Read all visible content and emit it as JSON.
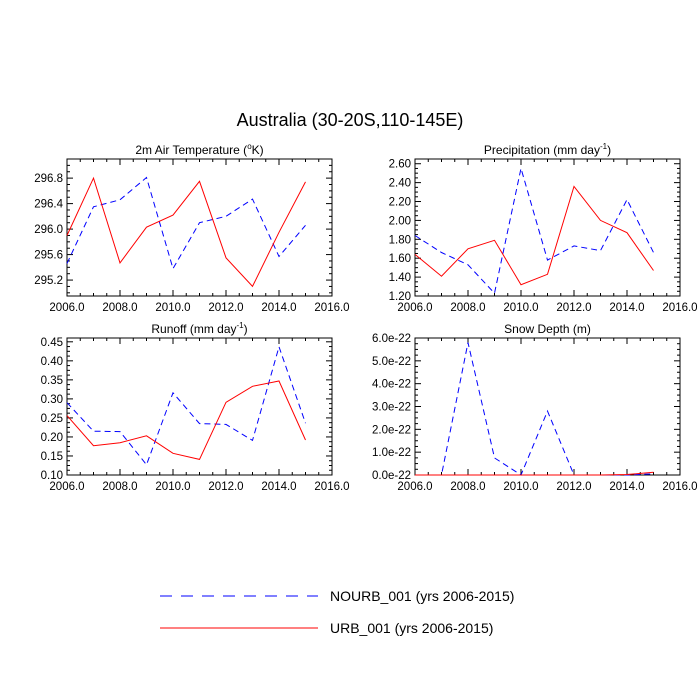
{
  "figure": {
    "title": "Australia (30-20S,110-145E)"
  },
  "legend": [
    {
      "name": "NOURB_001 (yrs 2006-2015)",
      "color": "#0000ff",
      "style": "dashed"
    },
    {
      "name": "URB_001 (yrs 2006-2015)",
      "color": "#ff0000",
      "style": "solid"
    }
  ],
  "chart_data": [
    {
      "type": "line",
      "title": "2m Air Temperature (°K)",
      "title_parts": {
        "pre": "2m Air Temperature (",
        "sup": "o",
        "post": "K)"
      },
      "x": [
        2006,
        2007,
        2008,
        2009,
        2010,
        2011,
        2012,
        2013,
        2014,
        2015
      ],
      "xlim": [
        2006,
        2016
      ],
      "xticks": [
        2006,
        2008,
        2010,
        2012,
        2014,
        2016
      ],
      "xtick_labels": [
        "2006.0",
        "2008.0",
        "2010.0",
        "2012.0",
        "2014.0",
        "2016.0"
      ],
      "ylim": [
        294.95,
        297.1
      ],
      "yticks": [
        295.2,
        295.6,
        296.0,
        296.4,
        296.8
      ],
      "ytick_labels": [
        "295.2",
        "295.6",
        "296.0",
        "296.4",
        "296.8"
      ],
      "series": [
        {
          "name": "NOURB_001 (yrs 2006-2015)",
          "color": "#0000ff",
          "style": "dashed",
          "values": [
            295.46,
            296.35,
            296.46,
            296.81,
            295.38,
            296.1,
            296.2,
            296.47,
            295.57,
            296.06
          ]
        },
        {
          "name": "URB_001 (yrs 2006-2015)",
          "color": "#ff0000",
          "style": "solid",
          "values": [
            295.9,
            296.8,
            295.47,
            296.03,
            296.22,
            296.75,
            295.55,
            295.1,
            295.95,
            296.74
          ]
        }
      ]
    },
    {
      "type": "line",
      "title": "Precipitation (mm day-1)",
      "title_parts": {
        "pre": "Precipitation (mm day",
        "sup": "-1",
        "post": ")"
      },
      "x": [
        2006,
        2007,
        2008,
        2009,
        2010,
        2011,
        2012,
        2013,
        2014,
        2015
      ],
      "xlim": [
        2006,
        2016
      ],
      "xticks": [
        2006,
        2008,
        2010,
        2012,
        2014,
        2016
      ],
      "xtick_labels": [
        "2006.0",
        "2008.0",
        "2010.0",
        "2012.0",
        "2014.0",
        "2016.0"
      ],
      "ylim": [
        1.2,
        2.65
      ],
      "yticks": [
        1.2,
        1.4,
        1.6,
        1.8,
        2.0,
        2.2,
        2.4,
        2.6
      ],
      "ytick_labels": [
        "1.20",
        "1.40",
        "1.60",
        "1.80",
        "2.00",
        "2.20",
        "2.40",
        "2.60"
      ],
      "series": [
        {
          "name": "NOURB_001 (yrs 2006-2015)",
          "color": "#0000ff",
          "style": "dashed",
          "values": [
            1.84,
            1.66,
            1.53,
            1.23,
            2.55,
            1.58,
            1.73,
            1.68,
            2.22,
            1.66
          ]
        },
        {
          "name": "URB_001 (yrs 2006-2015)",
          "color": "#ff0000",
          "style": "solid",
          "values": [
            1.64,
            1.41,
            1.7,
            1.79,
            1.32,
            1.43,
            2.36,
            2.0,
            1.87,
            1.47
          ]
        }
      ]
    },
    {
      "type": "line",
      "title": "Runoff (mm day-1)",
      "title_parts": {
        "pre": "Runoff (mm day",
        "sup": "-1",
        "post": ")"
      },
      "x": [
        2006,
        2007,
        2008,
        2009,
        2010,
        2011,
        2012,
        2013,
        2014,
        2015
      ],
      "xlim": [
        2006,
        2016
      ],
      "xticks": [
        2006,
        2008,
        2010,
        2012,
        2014,
        2016
      ],
      "xtick_labels": [
        "2006.0",
        "2008.0",
        "2010.0",
        "2012.0",
        "2014.0",
        "2016.0"
      ],
      "ylim": [
        0.1,
        0.46
      ],
      "yticks": [
        0.1,
        0.15,
        0.2,
        0.25,
        0.3,
        0.35,
        0.4,
        0.45
      ],
      "ytick_labels": [
        "0.10",
        "0.15",
        "0.20",
        "0.25",
        "0.30",
        "0.35",
        "0.40",
        "0.45"
      ],
      "series": [
        {
          "name": "NOURB_001 (yrs 2006-2015)",
          "color": "#0000ff",
          "style": "dashed",
          "values": [
            0.29,
            0.215,
            0.214,
            0.127,
            0.316,
            0.235,
            0.233,
            0.191,
            0.437,
            0.236
          ]
        },
        {
          "name": "URB_001 (yrs 2006-2015)",
          "color": "#ff0000",
          "style": "solid",
          "values": [
            0.256,
            0.177,
            0.185,
            0.203,
            0.157,
            0.141,
            0.291,
            0.333,
            0.347,
            0.192
          ]
        }
      ]
    },
    {
      "type": "line",
      "title": "Snow Depth (m)",
      "title_parts": {
        "pre": "Snow Depth (m)",
        "sup": "",
        "post": ""
      },
      "x": [
        2006,
        2007,
        2008,
        2009,
        2010,
        2011,
        2012,
        2013,
        2014,
        2015
      ],
      "xlim": [
        2006,
        2016
      ],
      "xticks": [
        2006,
        2008,
        2010,
        2012,
        2014,
        2016
      ],
      "xtick_labels": [
        "2006.0",
        "2008.0",
        "2010.0",
        "2012.0",
        "2014.0",
        "2016.0"
      ],
      "ylim": [
        0,
        6.0
      ],
      "yticks": [
        0,
        1,
        2,
        3,
        4,
        5,
        6
      ],
      "ytick_labels": [
        "0.0e-22",
        "1.0e-22",
        "2.0e-22",
        "3.0e-22",
        "4.0e-22",
        "5.0e-22",
        "6.0e-22"
      ],
      "y_unit_multiplier": "1e-22",
      "series": [
        {
          "name": "NOURB_001 (yrs 2006-2015)",
          "color": "#0000ff",
          "style": "dashed",
          "values": [
            0.0,
            0.0,
            5.8,
            0.75,
            0.0,
            2.8,
            0.0,
            0.0,
            0.0,
            0.05
          ]
        },
        {
          "name": "URB_001 (yrs 2006-2015)",
          "color": "#ff0000",
          "style": "solid",
          "values": [
            0.0,
            0.0,
            0.0,
            0.0,
            0.0,
            0.0,
            0.0,
            0.0,
            0.02,
            0.12
          ]
        }
      ]
    }
  ]
}
